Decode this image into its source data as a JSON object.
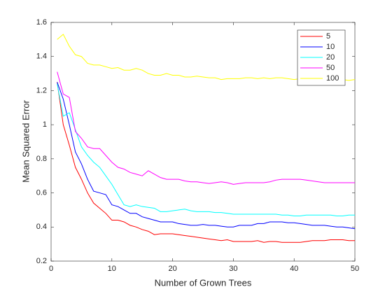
{
  "chart_data": {
    "type": "line",
    "xlabel": "Number of Grown Trees",
    "ylabel": "Mean Squared Error",
    "x": [
      1,
      2,
      3,
      4,
      5,
      6,
      7,
      8,
      9,
      10,
      11,
      12,
      13,
      14,
      15,
      16,
      17,
      18,
      19,
      20,
      21,
      22,
      23,
      24,
      25,
      26,
      27,
      28,
      29,
      30,
      31,
      32,
      33,
      34,
      35,
      36,
      37,
      38,
      39,
      40,
      41,
      42,
      43,
      44,
      45,
      46,
      47,
      48,
      49,
      50
    ],
    "series": [
      {
        "name": "5",
        "color": "#ff0000",
        "values": [
          1.25,
          1.0,
          0.88,
          0.75,
          0.68,
          0.6,
          0.54,
          0.51,
          0.48,
          0.44,
          0.44,
          0.43,
          0.41,
          0.4,
          0.385,
          0.375,
          0.355,
          0.36,
          0.36,
          0.36,
          0.355,
          0.35,
          0.345,
          0.34,
          0.335,
          0.33,
          0.325,
          0.32,
          0.325,
          0.315,
          0.315,
          0.315,
          0.315,
          0.32,
          0.31,
          0.315,
          0.315,
          0.31,
          0.31,
          0.31,
          0.31,
          0.315,
          0.32,
          0.32,
          0.32,
          0.325,
          0.325,
          0.325,
          0.32,
          0.32
        ]
      },
      {
        "name": "10",
        "color": "#0000ff",
        "values": [
          1.25,
          1.15,
          1.0,
          0.84,
          0.77,
          0.68,
          0.61,
          0.6,
          0.59,
          0.53,
          0.52,
          0.5,
          0.48,
          0.48,
          0.46,
          0.45,
          0.44,
          0.43,
          0.43,
          0.43,
          0.42,
          0.415,
          0.41,
          0.41,
          0.415,
          0.41,
          0.41,
          0.405,
          0.4,
          0.4,
          0.41,
          0.41,
          0.41,
          0.42,
          0.42,
          0.43,
          0.43,
          0.43,
          0.425,
          0.425,
          0.42,
          0.415,
          0.41,
          0.41,
          0.41,
          0.405,
          0.4,
          0.4,
          0.395,
          0.39
        ]
      },
      {
        "name": "20",
        "color": "#00ffff",
        "values": [
          1.24,
          1.05,
          1.07,
          0.97,
          0.87,
          0.82,
          0.78,
          0.75,
          0.7,
          0.65,
          0.59,
          0.53,
          0.52,
          0.53,
          0.52,
          0.515,
          0.51,
          0.49,
          0.49,
          0.495,
          0.5,
          0.505,
          0.495,
          0.49,
          0.49,
          0.49,
          0.485,
          0.485,
          0.48,
          0.475,
          0.475,
          0.475,
          0.475,
          0.475,
          0.475,
          0.475,
          0.475,
          0.47,
          0.47,
          0.465,
          0.465,
          0.47,
          0.47,
          0.47,
          0.47,
          0.47,
          0.465,
          0.465,
          0.47,
          0.47
        ]
      },
      {
        "name": "50",
        "color": "#ff00ff",
        "values": [
          1.31,
          1.18,
          1.16,
          0.96,
          0.92,
          0.87,
          0.86,
          0.86,
          0.82,
          0.78,
          0.75,
          0.74,
          0.72,
          0.71,
          0.7,
          0.73,
          0.71,
          0.69,
          0.68,
          0.68,
          0.68,
          0.67,
          0.665,
          0.665,
          0.66,
          0.655,
          0.66,
          0.665,
          0.66,
          0.65,
          0.655,
          0.66,
          0.66,
          0.66,
          0.66,
          0.665,
          0.675,
          0.68,
          0.68,
          0.68,
          0.68,
          0.675,
          0.67,
          0.665,
          0.66,
          0.66,
          0.66,
          0.66,
          0.66,
          0.66
        ]
      },
      {
        "name": "100",
        "color": "#ffff00",
        "values": [
          1.5,
          1.53,
          1.46,
          1.41,
          1.4,
          1.36,
          1.35,
          1.35,
          1.34,
          1.33,
          1.335,
          1.32,
          1.32,
          1.33,
          1.32,
          1.3,
          1.29,
          1.29,
          1.3,
          1.29,
          1.29,
          1.28,
          1.28,
          1.285,
          1.28,
          1.275,
          1.275,
          1.265,
          1.27,
          1.27,
          1.27,
          1.275,
          1.275,
          1.27,
          1.275,
          1.27,
          1.275,
          1.275,
          1.27,
          1.265,
          1.27,
          1.27,
          1.265,
          1.27,
          1.265,
          1.265,
          1.265,
          1.265,
          1.26,
          1.265
        ]
      }
    ],
    "xlim": [
      0,
      50
    ],
    "xticks": [
      0,
      10,
      20,
      30,
      40,
      50
    ],
    "ylim": [
      0.2,
      1.6
    ],
    "yticks": [
      0.2,
      0.4,
      0.6,
      0.8,
      1,
      1.2,
      1.4,
      1.6
    ],
    "legend": "northeast"
  }
}
